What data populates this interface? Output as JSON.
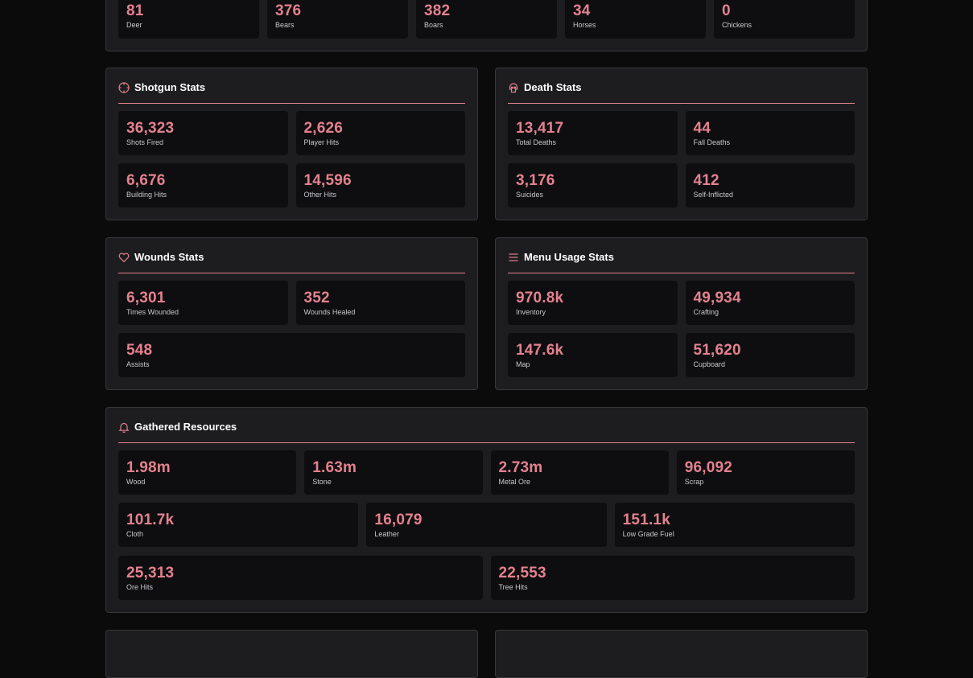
{
  "colors": {
    "accent": "#e4818f",
    "panel": "#1d1d1f",
    "tile": "#0e0e10",
    "background": "#0b0b0c"
  },
  "animals": {
    "stats": [
      {
        "value": "81",
        "label": "Deer"
      },
      {
        "value": "376",
        "label": "Bears"
      },
      {
        "value": "382",
        "label": "Boars"
      },
      {
        "value": "34",
        "label": "Horses"
      },
      {
        "value": "0",
        "label": "Chickens"
      }
    ]
  },
  "shotgun": {
    "icon": "crosshair-icon",
    "title": "Shotgun Stats",
    "stats": [
      {
        "value": "36,323",
        "label": "Shots Fired"
      },
      {
        "value": "2,626",
        "label": "Player Hits"
      },
      {
        "value": "6,676",
        "label": "Building Hits"
      },
      {
        "value": "14,596",
        "label": "Other Hits"
      }
    ]
  },
  "death": {
    "icon": "skull-icon",
    "title": "Death Stats",
    "stats": [
      {
        "value": "13,417",
        "label": "Total Deaths"
      },
      {
        "value": "44",
        "label": "Fall Deaths"
      },
      {
        "value": "3,176",
        "label": "Suicides"
      },
      {
        "value": "412",
        "label": "Self-Inflicted"
      }
    ]
  },
  "wounds": {
    "icon": "heart-icon",
    "title": "Wounds Stats",
    "stats": [
      {
        "value": "6,301",
        "label": "Times Wounded"
      },
      {
        "value": "352",
        "label": "Wounds Healed"
      },
      {
        "value": "548",
        "label": "Assists"
      }
    ]
  },
  "menu": {
    "icon": "menu-lines-icon",
    "title": "Menu Usage Stats",
    "stats": [
      {
        "value": "970.8k",
        "label": "Inventory"
      },
      {
        "value": "49,934",
        "label": "Crafting"
      },
      {
        "value": "147.6k",
        "label": "Map"
      },
      {
        "value": "51,620",
        "label": "Cupboard"
      }
    ]
  },
  "resources": {
    "icon": "bell-icon",
    "title": "Gathered Resources",
    "stats": [
      {
        "value": "1.98m",
        "label": "Wood"
      },
      {
        "value": "1.63m",
        "label": "Stone"
      },
      {
        "value": "2.73m",
        "label": "Metal Ore"
      },
      {
        "value": "96,092",
        "label": "Scrap"
      },
      {
        "value": "101.7k",
        "label": "Cloth"
      },
      {
        "value": "16,079",
        "label": "Leather"
      },
      {
        "value": "151.1k",
        "label": "Low Grade Fuel"
      },
      {
        "value": "25,313",
        "label": "Ore Hits"
      },
      {
        "value": "22,553",
        "label": "Tree Hits"
      }
    ]
  }
}
